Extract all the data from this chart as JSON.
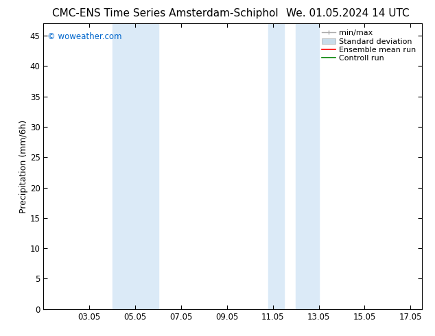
{
  "title_left": "CMC-ENS Time Series Amsterdam-Schiphol",
  "title_right": "We. 01.05.2024 14 UTC",
  "ylabel": "Precipitation (mm/6h)",
  "xlim": [
    1.0,
    17.5
  ],
  "ylim": [
    0,
    47
  ],
  "yticks": [
    0,
    5,
    10,
    15,
    20,
    25,
    30,
    35,
    40,
    45
  ],
  "xtick_labels": [
    "03.05",
    "05.05",
    "07.05",
    "09.05",
    "11.05",
    "13.05",
    "15.05",
    "17.05"
  ],
  "xtick_positions": [
    3,
    5,
    7,
    9,
    11,
    13,
    15,
    17
  ],
  "shaded_bands": [
    {
      "x_start": 4.5,
      "x_end": 5.5,
      "color": "#dbeaf7"
    },
    {
      "x_start": 5.5,
      "x_end": 6.0,
      "color": "#dbeaf7"
    },
    {
      "x_start": 10.8,
      "x_end": 11.5,
      "color": "#dbeaf7"
    },
    {
      "x_start": 12.0,
      "x_end": 13.0,
      "color": "#dbeaf7"
    }
  ],
  "legend_entries": [
    {
      "label": "min/max",
      "color": "#aaaaaa"
    },
    {
      "label": "Standard deviation",
      "color": "#c8dcea"
    },
    {
      "label": "Ensemble mean run",
      "color": "#ff0000"
    },
    {
      "label": "Controll run",
      "color": "#008000"
    }
  ],
  "watermark": "© woweather.com",
  "watermark_color": "#0066cc",
  "background_color": "#ffffff",
  "plot_bg_color": "#ffffff",
  "title_fontsize": 11,
  "axis_label_fontsize": 9,
  "tick_fontsize": 8.5,
  "legend_fontsize": 8
}
